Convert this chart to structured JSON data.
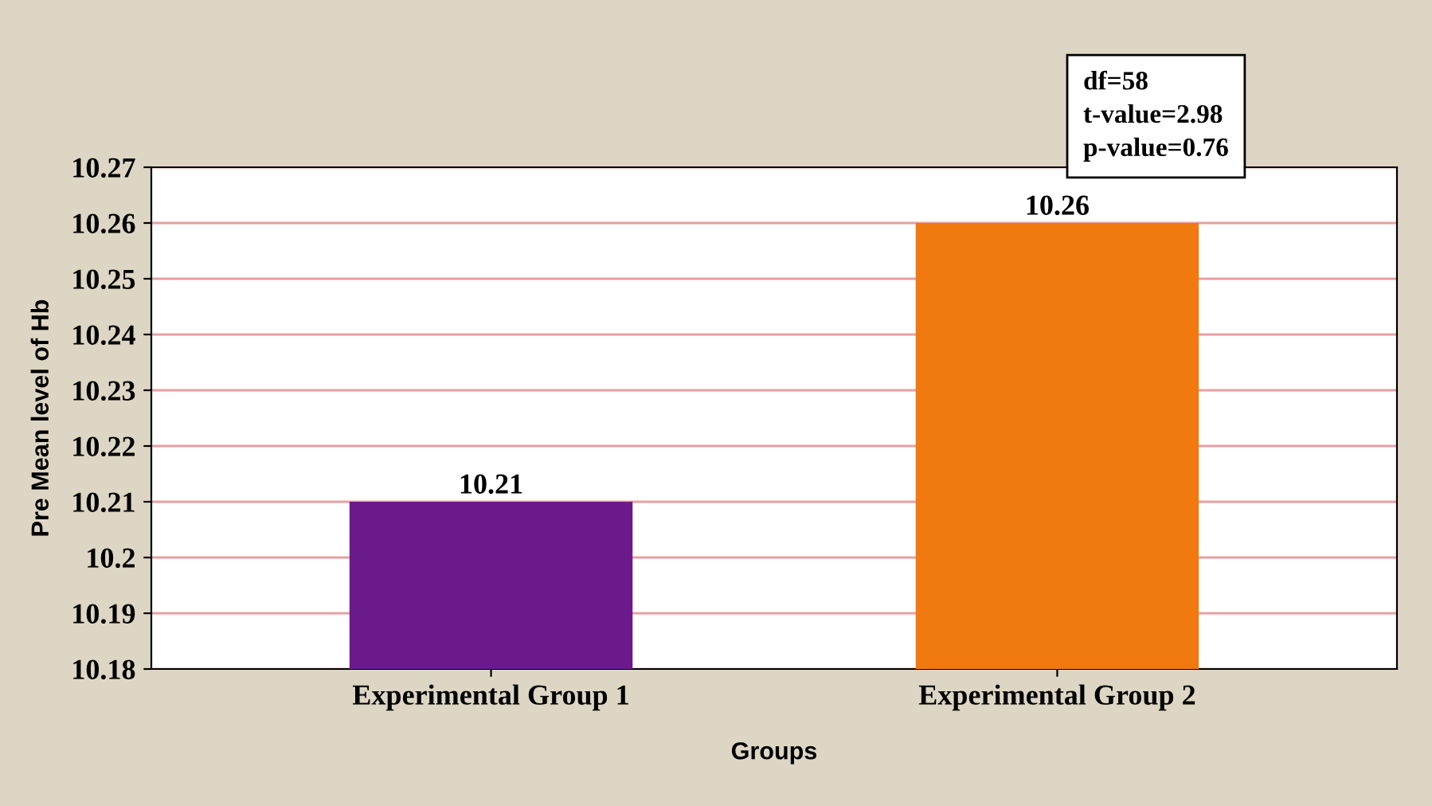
{
  "chart_data": {
    "type": "bar",
    "xlabel": "Groups",
    "ylabel": "Pre Mean level of Hb",
    "categories": [
      "Experimental Group 1",
      "Experimental Group 2"
    ],
    "values": [
      10.21,
      10.26
    ],
    "colors": [
      "#6a1a8a",
      "#f07a10"
    ],
    "ylim": [
      10.18,
      10.27
    ],
    "yticks": [
      10.18,
      10.19,
      10.2,
      10.21,
      10.22,
      10.23,
      10.24,
      10.25,
      10.26,
      10.27
    ],
    "grid": "y",
    "data_labels": true,
    "annotations": [
      "df=58\nt-value=2.98\np-value=0.76"
    ]
  }
}
